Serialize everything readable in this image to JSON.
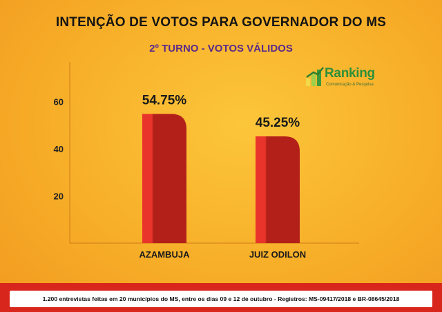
{
  "chart_data": {
    "type": "bar",
    "title": "INTENÇÃO DE VOTOS PARA GOVERNADOR DO MS",
    "subtitle": "2º TURNO - VOTOS VÁLIDOS",
    "categories": [
      "AZAMBUJA",
      "JUIZ ODILON"
    ],
    "values": [
      54.75,
      45.25
    ],
    "value_labels": [
      "54.75%",
      "45.25%"
    ],
    "yticks": [
      20,
      40,
      60
    ],
    "ylim": [
      0,
      75
    ],
    "grid": false,
    "colors": {
      "bar_light": "#e8342a",
      "bar_dark": "#b3201a"
    }
  },
  "logo": {
    "name": "Ranking",
    "tagline": "Comunicação & Pesquisa",
    "icon": "bar-chart-logo-icon"
  },
  "footer": {
    "text": "1.200 entrevistas feitas em 20 municípios do MS, entre os dias 09 e 12 de outubro - Registros:  MS-09417/2018 e BR-08645/2018"
  }
}
